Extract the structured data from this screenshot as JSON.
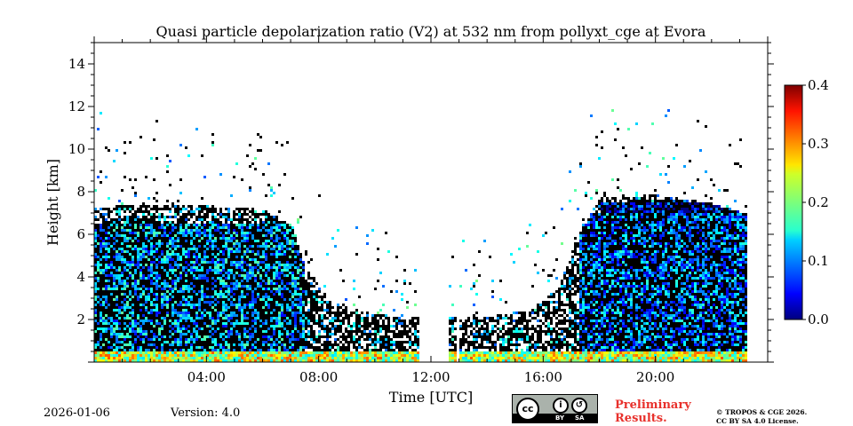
{
  "chart_data": {
    "type": "heatmap",
    "title": "Quasi particle depolarization ratio (V2) at 532 nm from pollyxt_cge at Evora",
    "xlabel": "Time [UTC]",
    "ylabel": "Height [km]",
    "xlim_hours": [
      0,
      24
    ],
    "ylim_km": [
      0,
      15
    ],
    "x_ticks": [
      {
        "value": 4,
        "label": "04:00"
      },
      {
        "value": 8,
        "label": "08:00"
      },
      {
        "value": 12,
        "label": "12:00"
      },
      {
        "value": 16,
        "label": "16:00"
      },
      {
        "value": 20,
        "label": "20:00"
      }
    ],
    "y_ticks": [
      {
        "value": 2,
        "label": "2"
      },
      {
        "value": 4,
        "label": "4"
      },
      {
        "value": 6,
        "label": "6"
      },
      {
        "value": 8,
        "label": "8"
      },
      {
        "value": 10,
        "label": "10"
      },
      {
        "value": 12,
        "label": "12"
      },
      {
        "value": 14,
        "label": "14"
      }
    ],
    "colorbar": {
      "colormap": "jet",
      "range": [
        0.0,
        0.4
      ],
      "ticks": [
        {
          "value": 0.0,
          "label": "0.0"
        },
        {
          "value": 0.1,
          "label": "0.1"
        },
        {
          "value": 0.2,
          "label": "0.2"
        },
        {
          "value": 0.3,
          "label": "0.3"
        },
        {
          "value": 0.4,
          "label": "0.4"
        }
      ]
    },
    "data_gaps_hours": [
      [
        11.55,
        12.55
      ],
      [
        12.85,
        13.0
      ]
    ],
    "data_end_hour": 23.25,
    "signal_top_km": [
      {
        "t": 0,
        "h": 7.3
      },
      {
        "t": 2,
        "h": 7.5
      },
      {
        "t": 4,
        "h": 7.4
      },
      {
        "t": 6,
        "h": 7.2
      },
      {
        "t": 7,
        "h": 6.5
      },
      {
        "t": 7.5,
        "h": 4.5
      },
      {
        "t": 8.5,
        "h": 2.8
      },
      {
        "t": 10,
        "h": 2.3
      },
      {
        "t": 12,
        "h": 2.1
      },
      {
        "t": 14,
        "h": 2.2
      },
      {
        "t": 15.5,
        "h": 2.5
      },
      {
        "t": 16.5,
        "h": 3.5
      },
      {
        "t": 17.2,
        "h": 6.0
      },
      {
        "t": 18,
        "h": 7.8
      },
      {
        "t": 20,
        "h": 7.9
      },
      {
        "t": 22,
        "h": 7.5
      },
      {
        "t": 23.25,
        "h": 7.0
      }
    ],
    "features": [
      {
        "name": "near-surface aerosol layer",
        "t_start": 0,
        "t_end": 23.25,
        "h_bottom": 0.0,
        "h_top": 0.6,
        "value": 0.25
      },
      {
        "name": "boundary layer aerosol",
        "t_start": 0,
        "t_end": 7.5,
        "h_bottom": 0.6,
        "h_top": 6.5,
        "value": 0.12
      },
      {
        "name": "boundary layer aerosol",
        "t_start": 17.2,
        "t_end": 23.25,
        "h_bottom": 0.6,
        "h_top": 7.0,
        "value": 0.1
      },
      {
        "name": "low depolarization layer",
        "t_start": 18,
        "t_end": 23.25,
        "h_bottom": 4.5,
        "h_top": 7.5,
        "value": 0.05
      }
    ]
  },
  "footer": {
    "date": "2026-01-06",
    "version": "Version: 4.0",
    "preliminary_line1": "Preliminary",
    "preliminary_line2": "Results.",
    "license_line1": "© TROPOS & CGE 2026.",
    "license_line2": "CC BY SA 4.0 License.",
    "cc_logo_text": "cc",
    "cc_by": "BY",
    "cc_sa": "SA",
    "cc_by_icon": "person-icon",
    "cc_sa_icon": "share-alike-icon"
  },
  "colors": {
    "no_signal": "#000000",
    "background": "#ffffff",
    "preliminary": "#e8312c"
  }
}
